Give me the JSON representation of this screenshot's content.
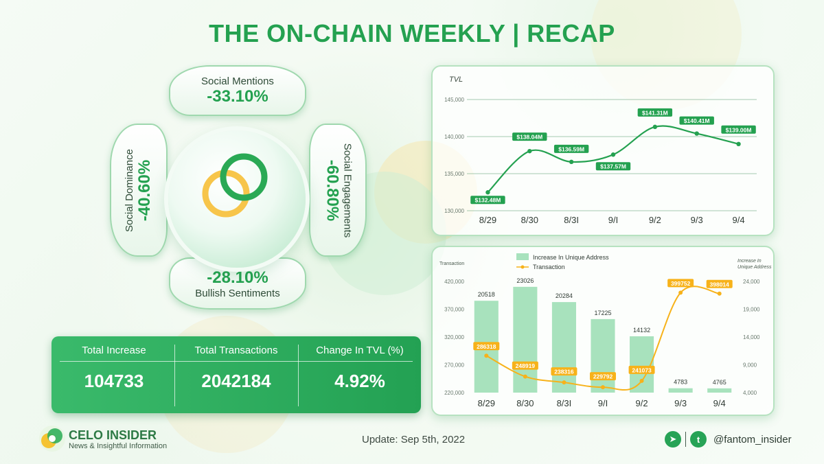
{
  "title": "THE ON-CHAIN WEEKLY | RECAP",
  "metrics": {
    "mentions": {
      "label": "Social Mentions",
      "value": "-33.10%"
    },
    "dominance": {
      "label": "Social Dominance",
      "value": "-40.60%"
    },
    "engagements": {
      "label": "Social Engagements",
      "value": "-60.80%"
    },
    "sentiments": {
      "label": "Bullish Sentiments",
      "value": "-28.10%"
    }
  },
  "stats": {
    "increase_label": "Total Increase",
    "increase_value": "104733",
    "tx_label": "Total Transactions",
    "tx_value": "2042184",
    "tvl_label": "Change In TVL (%)",
    "tvl_value": "4.92%"
  },
  "brand": {
    "name": "CELO INSIDER",
    "tagline": "News & Insightful Information"
  },
  "update": "Update: Sep 5th, 2022",
  "social_handle": "@fantom_insider",
  "colors": {
    "green": "#24a150",
    "orange": "#f7b21a",
    "bar": "#a8e2bd"
  },
  "chart_data": [
    {
      "type": "line",
      "ylabel": "TVL",
      "categories": [
        "8/29",
        "8/30",
        "8/3I",
        "9/I",
        "9/2",
        "9/3",
        "9/4"
      ],
      "values": [
        132480,
        138040,
        136590,
        137570,
        141310,
        140410,
        139000
      ],
      "data_labels": [
        "$132.48M",
        "$138.04M",
        "$136.59M",
        "$137.57M",
        "$141.31M",
        "$140.41M",
        "$139.00M"
      ],
      "yticks": [
        "130,000",
        "135,000",
        "140,000",
        "145,000"
      ],
      "ylim": [
        130000,
        145000
      ],
      "grid": true
    },
    {
      "type": "bar",
      "categories": [
        "8/29",
        "8/30",
        "8/3I",
        "9/I",
        "9/2",
        "9/3",
        "9/4"
      ],
      "series": [
        {
          "name": "Increase In Unique Address",
          "type": "bar",
          "axis": "right",
          "values": [
            20518,
            23026,
            20284,
            17225,
            14132,
            4783,
            4765
          ]
        },
        {
          "name": "Transaction",
          "type": "line",
          "axis": "left",
          "values": [
            286318,
            248919,
            238316,
            229792,
            241073,
            399752,
            398014
          ]
        }
      ],
      "left_axis_label": "Transaction",
      "right_axis_label": "Increase In Unique Address",
      "left_ticks": [
        "220,000",
        "270,000",
        "320,000",
        "370,000",
        "420,000"
      ],
      "right_ticks": [
        "4,000",
        "9,000",
        "14,000",
        "19,000",
        "24,000"
      ],
      "left_lim": [
        220000,
        420000
      ],
      "right_lim": [
        4000,
        24000
      ],
      "legend": "top-center"
    }
  ]
}
